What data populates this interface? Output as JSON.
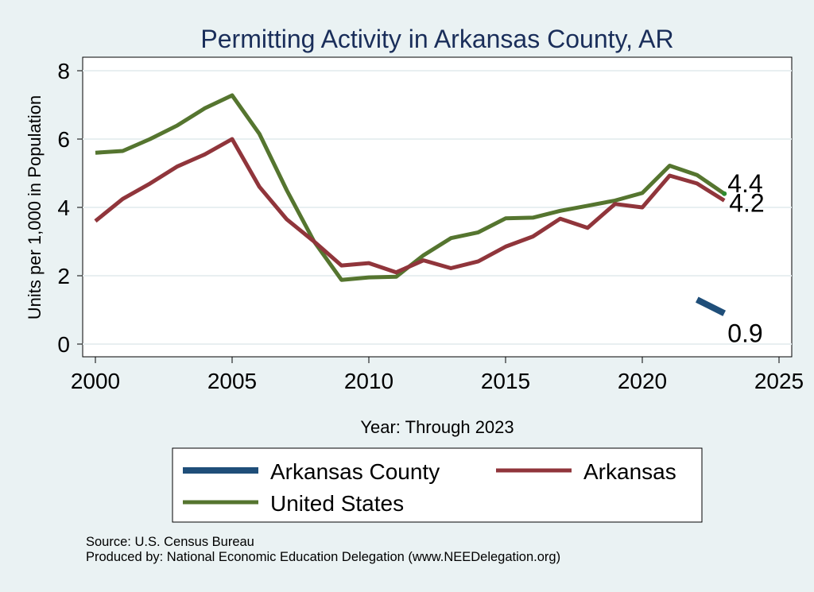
{
  "colors": {
    "background": "#eaf2f3",
    "plot_background": "#ffffff",
    "title": "#1a2e5a",
    "gridline": "#e8eff1",
    "arkansas_county": "#1f4e79",
    "arkansas": "#90353b",
    "united_states": "#55752f"
  },
  "chart_data": {
    "type": "line",
    "title": "Permitting Activity in Arkansas County, AR",
    "xlabel": "Year: Through 2023",
    "ylabel": "Units per 1,000 in Population",
    "xlim": [
      2000,
      2025
    ],
    "ylim": [
      0,
      8
    ],
    "xticks": [
      "2000",
      "2005",
      "2010",
      "2015",
      "2020",
      "2025"
    ],
    "yticks": [
      "0",
      "2",
      "4",
      "6",
      "8"
    ],
    "grid": true,
    "legend_position": "bottom",
    "series": [
      {
        "name": "Arkansas County",
        "x": [
          2022,
          2023
        ],
        "y": [
          1.3,
          0.9
        ],
        "end_label": "0.9"
      },
      {
        "name": "Arkansas",
        "x": [
          2000,
          2001,
          2002,
          2003,
          2004,
          2005,
          2006,
          2007,
          2008,
          2009,
          2010,
          2011,
          2012,
          2013,
          2014,
          2015,
          2016,
          2017,
          2018,
          2019,
          2020,
          2021,
          2022,
          2023
        ],
        "y": [
          3.6,
          4.25,
          4.7,
          5.2,
          5.55,
          6.0,
          4.6,
          3.65,
          3.0,
          2.3,
          2.37,
          2.1,
          2.45,
          2.22,
          2.42,
          2.85,
          3.15,
          3.67,
          3.4,
          4.1,
          4.0,
          4.93,
          4.7,
          4.2
        ],
        "end_label": "4.2"
      },
      {
        "name": "United States",
        "x": [
          2000,
          2001,
          2002,
          2003,
          2004,
          2005,
          2006,
          2007,
          2008,
          2009,
          2010,
          2011,
          2012,
          2013,
          2014,
          2015,
          2016,
          2017,
          2018,
          2019,
          2020,
          2021,
          2022,
          2023
        ],
        "y": [
          5.6,
          5.65,
          6.0,
          6.4,
          6.9,
          7.28,
          6.15,
          4.5,
          3.0,
          1.88,
          1.95,
          1.97,
          2.6,
          3.1,
          3.27,
          3.68,
          3.7,
          3.9,
          4.05,
          4.2,
          4.42,
          5.22,
          4.95,
          4.4
        ],
        "end_label": "4.4"
      }
    ]
  },
  "footnotes": {
    "source": "Source: U.S. Census Bureau",
    "produced_by": "Produced by: National Economic Education Delegation (www.NEEDelegation.org)"
  }
}
